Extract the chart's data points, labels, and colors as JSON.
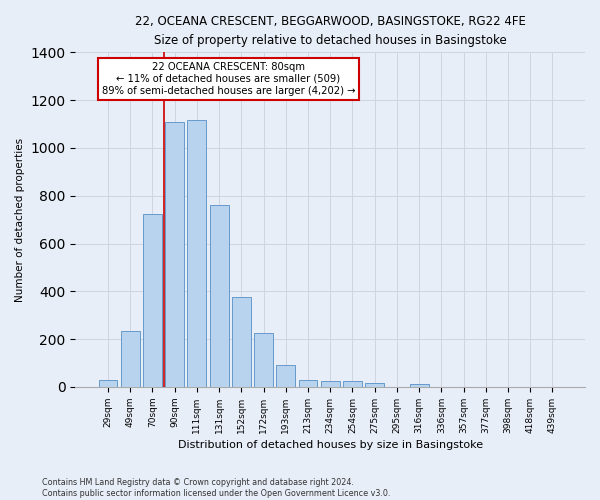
{
  "title1": "22, OCEANA CRESCENT, BEGGARWOOD, BASINGSTOKE, RG22 4FE",
  "title2": "Size of property relative to detached houses in Basingstoke",
  "xlabel": "Distribution of detached houses by size in Basingstoke",
  "ylabel": "Number of detached properties",
  "footer1": "Contains HM Land Registry data © Crown copyright and database right 2024.",
  "footer2": "Contains public sector information licensed under the Open Government Licence v3.0.",
  "categories": [
    "29sqm",
    "49sqm",
    "70sqm",
    "90sqm",
    "111sqm",
    "131sqm",
    "152sqm",
    "172sqm",
    "193sqm",
    "213sqm",
    "234sqm",
    "254sqm",
    "275sqm",
    "295sqm",
    "316sqm",
    "336sqm",
    "357sqm",
    "377sqm",
    "398sqm",
    "418sqm",
    "439sqm"
  ],
  "values": [
    30,
    235,
    725,
    1110,
    1115,
    760,
    375,
    225,
    90,
    30,
    25,
    25,
    15,
    0,
    12,
    0,
    0,
    0,
    0,
    0,
    0
  ],
  "bar_color": "#b8d3ee",
  "bar_edge_color": "#6699cc",
  "annotation_text": "22 OCEANA CRESCENT: 80sqm\n← 11% of detached houses are smaller (509)\n89% of semi-detached houses are larger (4,202) →",
  "annotation_box_facecolor": "#ffffff",
  "annotation_box_edgecolor": "#cc0000",
  "vline_xindex": 2.5,
  "vline_color": "#cc0000",
  "bg_color": "#e8eef8",
  "grid_color": "#d0d4e0",
  "ylim": [
    0,
    1400
  ],
  "title1_fontsize": 8.5,
  "title2_fontsize": 8.0
}
